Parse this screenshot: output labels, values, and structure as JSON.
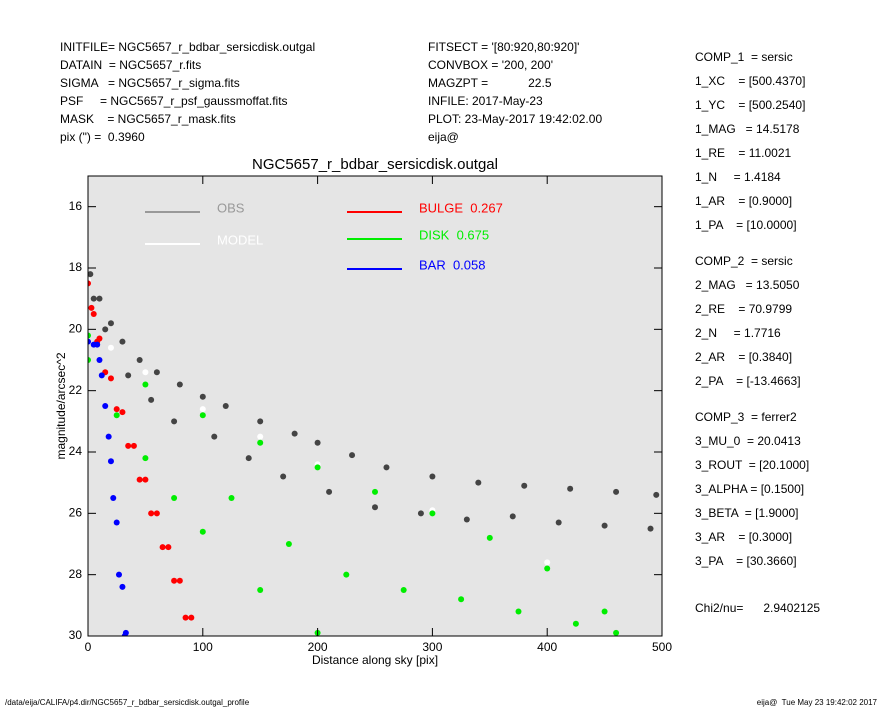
{
  "header": {
    "left": [
      "INITFILE= NGC5657_r_bdbar_sersicdisk.outgal",
      "DATAIN  = NGC5657_r.fits",
      "SIGMA   = NGC5657_r_sigma.fits",
      "PSF     = NGC5657_r_psf_gaussmoffat.fits",
      "MASK    = NGC5657_r_mask.fits",
      "pix (\") =  0.3960"
    ],
    "middle": [
      "FITSECT = '[80:920,80:920]'",
      "CONVBOX = '200, 200'",
      "MAGZPT =            22.5",
      "INFILE: 2017-May-23",
      "PLOT: 23-May-2017 19:42:02.00",
      "eija@"
    ]
  },
  "panel": {
    "components": [
      [
        "COMP_1  = sersic",
        "1_XC    = [500.4370]",
        "1_YC    = [500.2540]",
        "1_MAG   = 14.5178",
        "1_RE    = 11.0021",
        "1_N     = 1.4184",
        "1_AR    = [0.9000]",
        "1_PA    = [10.0000]"
      ],
      [
        "COMP_2  = sersic",
        "2_MAG   = 13.5050",
        "2_RE    = 70.9799",
        "2_N     = 1.7716",
        "2_AR    = [0.3840]",
        "2_PA    = [-13.4663]"
      ],
      [
        "COMP_3  = ferrer2",
        "3_MU_0  = 20.0413",
        "3_ROUT  = [20.1000]",
        "3_ALPHA = [0.1500]",
        "3_BETA  = [1.9000]",
        "3_AR    = [0.3000]",
        "3_PA    = [30.3660]"
      ]
    ],
    "chi2": "Chi2/nu=      2.9402125"
  },
  "footer": {
    "left": "/data/eija/CALIFA/p4.dir/NGC5657_r_bdbar_sersicdisk.outgal_profile",
    "right": "eija@  Tue May 23 19:42:02 2017"
  },
  "chart_data": {
    "type": "scatter",
    "title": "NGC5657_r_bdbar_sersicdisk.outgal",
    "x_label": "Distance along sky [pix]",
    "y_label": "magnitude/arcsec^2",
    "xlim": [
      0,
      500
    ],
    "xticks": [
      0,
      100,
      200,
      300,
      400,
      500
    ],
    "ylim": [
      30,
      15
    ],
    "yticks": [
      16,
      18,
      20,
      22,
      24,
      26,
      28,
      30
    ],
    "series": [
      {
        "name": "OBS",
        "color": "#444444",
        "legend_color": "#999999",
        "x": [
          2,
          10,
          20,
          30,
          45,
          60,
          80,
          100,
          120,
          150,
          180,
          200,
          230,
          260,
          300,
          340,
          380,
          420,
          460,
          495,
          5,
          15,
          35,
          55,
          75,
          110,
          140,
          170,
          210,
          250,
          290,
          330,
          370,
          410,
          450,
          490
        ],
        "values": [
          18.2,
          19.0,
          19.8,
          20.4,
          21.0,
          21.4,
          21.8,
          22.2,
          22.5,
          23.0,
          23.4,
          23.7,
          24.1,
          24.5,
          24.8,
          25.0,
          25.1,
          25.2,
          25.3,
          25.4,
          19.0,
          20.0,
          21.5,
          22.3,
          23.0,
          23.5,
          24.2,
          24.8,
          25.3,
          25.8,
          26.0,
          26.2,
          26.1,
          26.3,
          26.4,
          26.5
        ]
      },
      {
        "name": "MODEL",
        "color": "#ffffff",
        "legend_color": "#ffffff",
        "x": [
          0,
          20,
          50,
          100,
          150,
          200,
          300,
          400
        ],
        "values": [
          18.4,
          20.6,
          21.4,
          22.6,
          23.5,
          24.4,
          25.9,
          27.6
        ]
      },
      {
        "name": "BULGE  0.267",
        "color": "#ff0000",
        "legend_color": "#ff0000",
        "x": [
          0,
          5,
          10,
          20,
          30,
          40,
          50,
          60,
          70,
          80,
          90,
          3,
          8,
          15,
          25,
          35,
          45,
          55,
          65,
          75,
          85
        ],
        "values": [
          18.5,
          19.5,
          20.3,
          21.6,
          22.7,
          23.8,
          24.9,
          26.0,
          27.1,
          28.2,
          29.4,
          19.3,
          20.4,
          21.4,
          22.6,
          23.8,
          24.9,
          26.0,
          27.1,
          28.2,
          29.4
        ]
      },
      {
        "name": "DISK  0.675",
        "color": "#00ee00",
        "legend_color": "#00ee00",
        "x": [
          0,
          50,
          100,
          150,
          200,
          250,
          300,
          350,
          400,
          450,
          460,
          0,
          25,
          50,
          75,
          100,
          150,
          200,
          125,
          175,
          225,
          275,
          325,
          375,
          425
        ],
        "values": [
          20.2,
          21.8,
          22.8,
          23.7,
          24.5,
          25.3,
          26.0,
          26.8,
          27.8,
          29.2,
          29.9,
          21.0,
          22.8,
          24.2,
          25.5,
          26.6,
          28.5,
          29.9,
          25.5,
          27.0,
          28.0,
          28.5,
          28.8,
          29.2,
          29.6
        ]
      },
      {
        "name": "BAR  0.058",
        "color": "#0000ff",
        "legend_color": "#0000ff",
        "x": [
          0,
          5,
          10,
          15,
          20,
          25,
          30,
          33,
          8,
          12,
          18,
          22,
          27,
          32
        ],
        "values": [
          20.4,
          20.5,
          21.0,
          22.5,
          24.3,
          26.3,
          28.4,
          29.9,
          20.5,
          21.5,
          23.5,
          25.5,
          28.0,
          30.0
        ]
      }
    ]
  }
}
